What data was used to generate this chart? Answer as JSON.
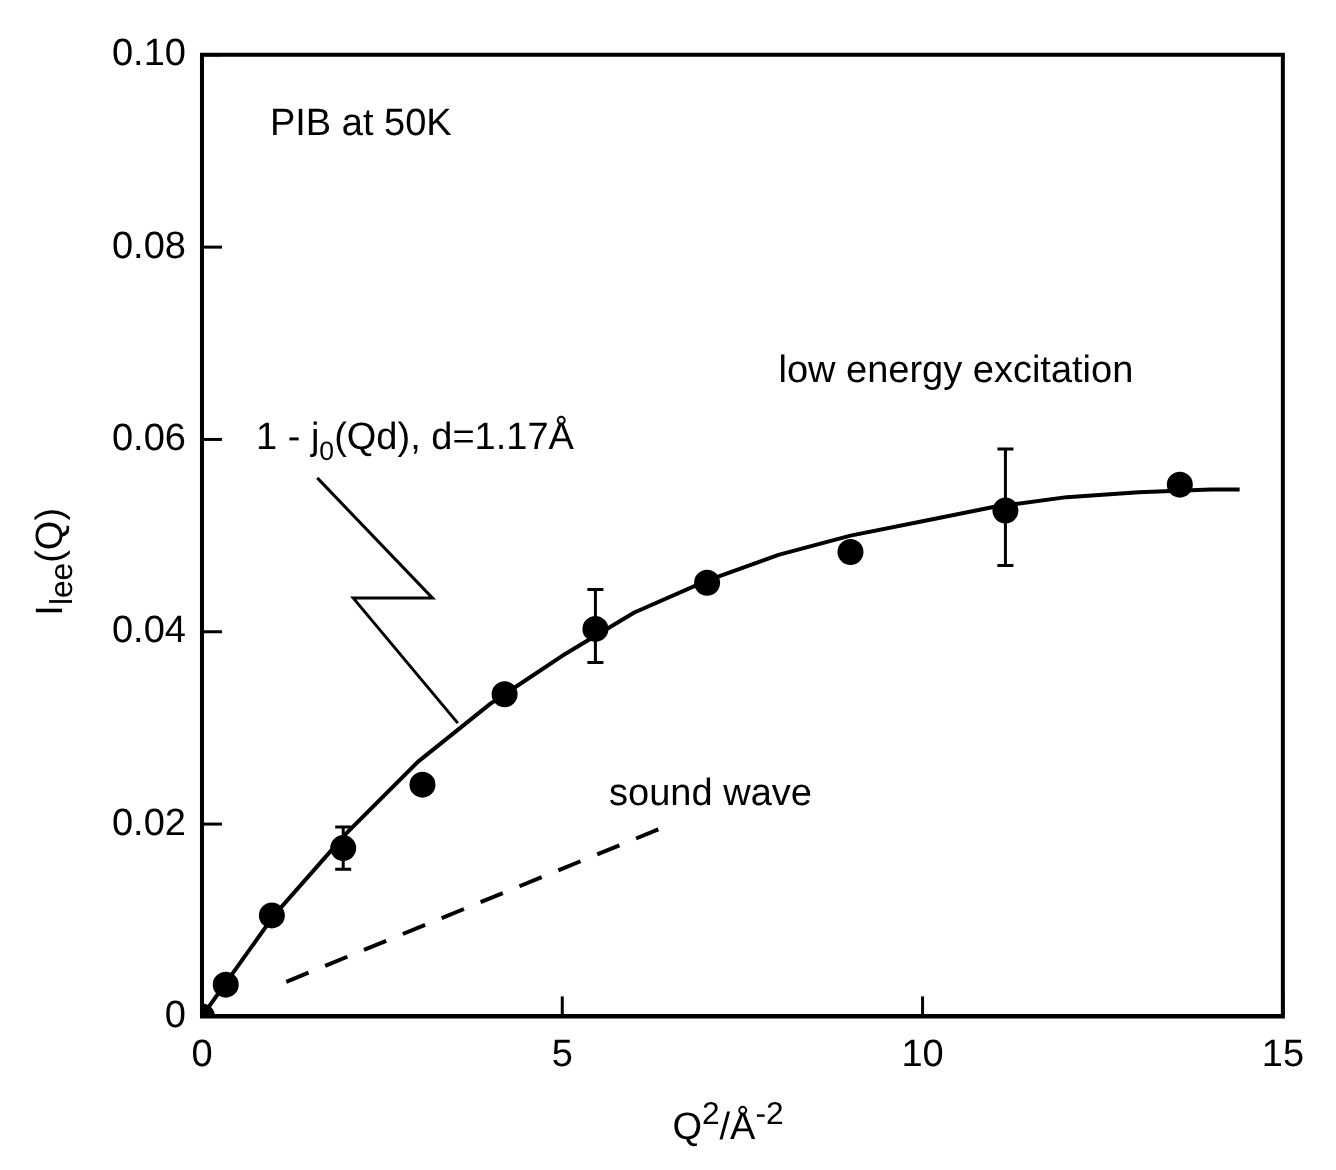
{
  "chart_data": {
    "type": "scatter",
    "xlabel": "Q$^{2}$/Å$^{-2}$",
    "ylabel": "I$_{lee}$(Q)",
    "annotations": [
      "PIB at 50K"
    ],
    "xlim": [
      0,
      15
    ],
    "xticks": [
      0,
      5,
      10,
      15
    ],
    "ylim": [
      0,
      0.1
    ],
    "yticks": [
      0,
      0.02,
      0.04,
      0.06,
      0.08,
      {
        "value": 0.1,
        "label": "0.10"
      }
    ],
    "grid": false,
    "legend": false,
    "series": [
      {
        "name": "low energy excitation",
        "color": "#000000",
        "marker": "circle",
        "x": [
          0,
          0.33,
          0.97,
          1.96,
          3.06,
          4.2,
          5.46,
          7.01,
          9.0,
          11.15,
          13.57
        ],
        "values": [
          0,
          0.0033,
          0.0105,
          0.0175,
          0.0241,
          0.0335,
          0.0403,
          0.0451,
          0.0483,
          0.0526,
          0.0553
        ],
        "errors": [
          null,
          null,
          null,
          [
            0.0153,
            0.0197
          ],
          null,
          null,
          [
            0.0368,
            0.0444
          ],
          null,
          null,
          [
            0.0469,
            0.059
          ],
          null
        ]
      },
      {
        "name": "1 - j$_{0}$(Qd), d=1.17Å",
        "type": "line",
        "color": "#000000",
        "marker": "none",
        "line_style": "solid",
        "x": [
          0,
          1,
          2,
          3,
          4,
          5,
          6,
          7,
          8,
          9,
          10,
          11,
          12,
          13,
          14,
          14.4
        ],
        "values": [
          0,
          0.0105,
          0.019,
          0.0265,
          0.0325,
          0.0375,
          0.042,
          0.0453,
          0.048,
          0.05,
          0.0515,
          0.053,
          0.054,
          0.0545,
          0.0548,
          0.0548
        ]
      },
      {
        "name": "sound wave",
        "type": "line",
        "color": "#000000",
        "marker": "none",
        "line_style": "dashed",
        "x": [
          1.17,
          6.35
        ],
        "values": [
          0.0036,
          0.0195
        ]
      }
    ]
  }
}
